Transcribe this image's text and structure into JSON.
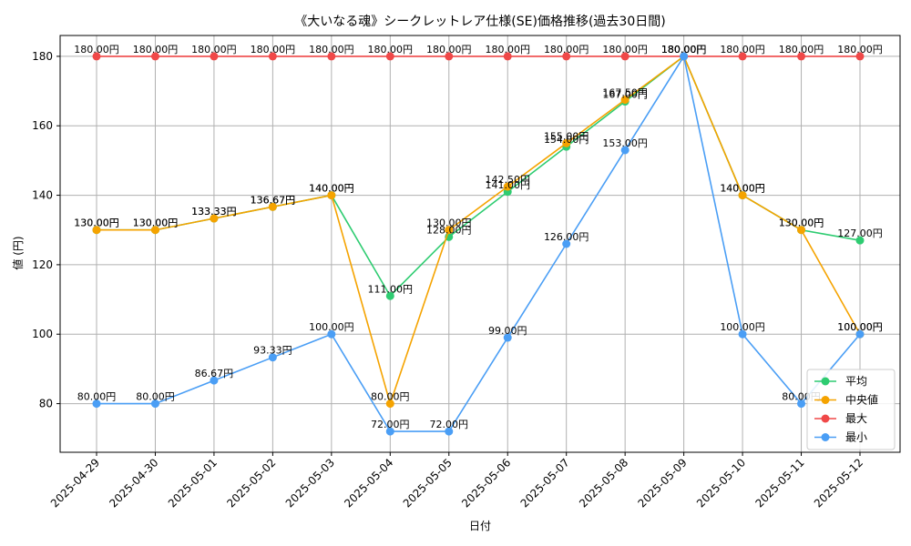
{
  "chart_data": {
    "type": "line",
    "title": "《大いなる魂》シークレットレア仕様(SE)価格推移(過去30日間)",
    "xlabel": "日付",
    "ylabel": "値 (円)",
    "ylim": [
      66,
      186
    ],
    "yticks": [
      80,
      100,
      120,
      140,
      160,
      180
    ],
    "grid": true,
    "legend_position": "bottom-right",
    "value_suffix": "円",
    "categories": [
      "2025-04-29",
      "2025-04-30",
      "2025-05-01",
      "2025-05-02",
      "2025-05-03",
      "2025-05-04",
      "2025-05-05",
      "2025-05-06",
      "2025-05-07",
      "2025-05-08",
      "2025-05-09",
      "2025-05-10",
      "2025-05-11",
      "2025-05-12"
    ],
    "series": [
      {
        "name": "平均",
        "color": "#2ecc71",
        "values": [
          130.0,
          130.0,
          133.33,
          136.67,
          140.0,
          111.0,
          128.0,
          141.0,
          154.0,
          167.0,
          180.0,
          140.0,
          130.0,
          127.0
        ]
      },
      {
        "name": "中央値",
        "color": "#f5a300",
        "values": [
          130.0,
          130.0,
          133.33,
          136.67,
          140.0,
          80.0,
          130.0,
          142.5,
          155.0,
          167.5,
          180.0,
          140.0,
          130.0,
          100.0
        ]
      },
      {
        "name": "最大",
        "color": "#f04848",
        "values": [
          180.0,
          180.0,
          180.0,
          180.0,
          180.0,
          180.0,
          180.0,
          180.0,
          180.0,
          180.0,
          180.0,
          180.0,
          180.0,
          180.0
        ]
      },
      {
        "name": "最小",
        "color": "#4a9ef5",
        "values": [
          80.0,
          80.0,
          86.67,
          93.33,
          100.0,
          72.0,
          72.0,
          99.0,
          126.0,
          153.0,
          180.0,
          100.0,
          80.0,
          100.0
        ]
      }
    ]
  }
}
